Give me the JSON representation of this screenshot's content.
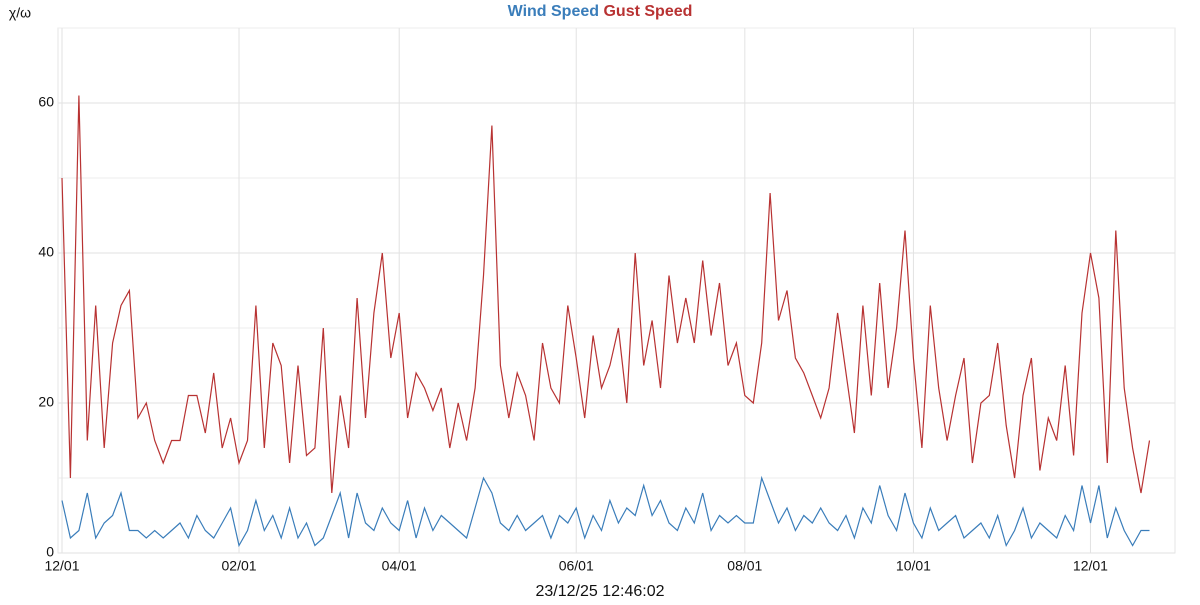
{
  "chart_data": {
    "type": "line",
    "y_label": "χ/ω",
    "x_label": "23/12/25 12:46:02",
    "categories": [
      "12/01",
      null,
      null,
      null,
      null,
      null,
      null,
      null,
      null,
      null,
      null,
      null,
      null,
      null,
      null,
      null,
      null,
      null,
      null,
      null,
      null,
      "02/01",
      null,
      null,
      null,
      null,
      null,
      null,
      null,
      null,
      null,
      null,
      null,
      null,
      null,
      null,
      null,
      null,
      null,
      null,
      "04/01",
      null,
      null,
      null,
      null,
      null,
      null,
      null,
      null,
      null,
      null,
      null,
      null,
      null,
      null,
      null,
      null,
      null,
      null,
      null,
      null,
      "06/01",
      null,
      null,
      null,
      null,
      null,
      null,
      null,
      null,
      null,
      null,
      null,
      null,
      null,
      null,
      null,
      null,
      null,
      null,
      null,
      "08/01",
      null,
      null,
      null,
      null,
      null,
      null,
      null,
      null,
      null,
      null,
      null,
      null,
      null,
      null,
      null,
      null,
      null,
      null,
      null,
      "10/01",
      null,
      null,
      null,
      null,
      null,
      null,
      null,
      null,
      null,
      null,
      null,
      null,
      null,
      null,
      null,
      null,
      null,
      null,
      null,
      null,
      "12/01",
      null,
      null,
      null,
      null,
      null,
      null,
      null
    ],
    "series": [
      {
        "name": "Wind Speed",
        "color": "#3a7dba",
        "values": [
          7,
          2,
          3,
          8,
          2,
          4,
          5,
          8,
          3,
          3,
          2,
          3,
          2,
          3,
          4,
          2,
          5,
          3,
          2,
          4,
          6,
          1,
          3,
          7,
          3,
          5,
          2,
          6,
          2,
          4,
          1,
          2,
          5,
          8,
          2,
          8,
          4,
          3,
          6,
          4,
          3,
          7,
          2,
          6,
          3,
          5,
          4,
          3,
          2,
          6,
          10,
          8,
          4,
          3,
          5,
          3,
          4,
          5,
          2,
          5,
          4,
          6,
          2,
          5,
          3,
          7,
          4,
          6,
          5,
          9,
          5,
          7,
          4,
          3,
          6,
          4,
          8,
          3,
          5,
          4,
          5,
          4,
          4,
          10,
          7,
          4,
          6,
          3,
          5,
          4,
          6,
          4,
          3,
          5,
          2,
          6,
          4,
          9,
          5,
          3,
          8,
          4,
          2,
          6,
          3,
          4,
          5,
          2,
          3,
          4,
          2,
          5,
          1,
          3,
          6,
          2,
          4,
          3,
          2,
          5,
          3,
          9,
          4,
          9,
          2,
          6,
          3,
          1,
          3,
          3
        ]
      },
      {
        "name": "Gust Speed",
        "color": "#b83232",
        "values": [
          50,
          10,
          61,
          15,
          33,
          14,
          28,
          33,
          35,
          18,
          20,
          15,
          12,
          15,
          15,
          21,
          21,
          16,
          24,
          14,
          18,
          12,
          15,
          33,
          14,
          28,
          25,
          12,
          25,
          13,
          14,
          30,
          8,
          21,
          14,
          34,
          18,
          32,
          40,
          26,
          32,
          18,
          24,
          22,
          19,
          22,
          14,
          20,
          15,
          22,
          37,
          57,
          25,
          18,
          24,
          21,
          15,
          28,
          22,
          20,
          33,
          26,
          18,
          29,
          22,
          25,
          30,
          20,
          40,
          25,
          31,
          22,
          37,
          28,
          34,
          28,
          39,
          29,
          36,
          25,
          28,
          21,
          20,
          28,
          48,
          31,
          35,
          26,
          24,
          21,
          18,
          22,
          32,
          24,
          16,
          33,
          21,
          36,
          22,
          30,
          43,
          26,
          14,
          33,
          22,
          15,
          21,
          26,
          12,
          20,
          21,
          28,
          17,
          10,
          21,
          26,
          11,
          18,
          15,
          25,
          13,
          32,
          40,
          34,
          12,
          43,
          22,
          14,
          8,
          15
        ]
      }
    ],
    "ylim": [
      0,
      70
    ],
    "yticks": [
      0,
      20,
      40,
      60
    ],
    "yminorticks": [
      10,
      30,
      50,
      70
    ],
    "grid": true
  }
}
